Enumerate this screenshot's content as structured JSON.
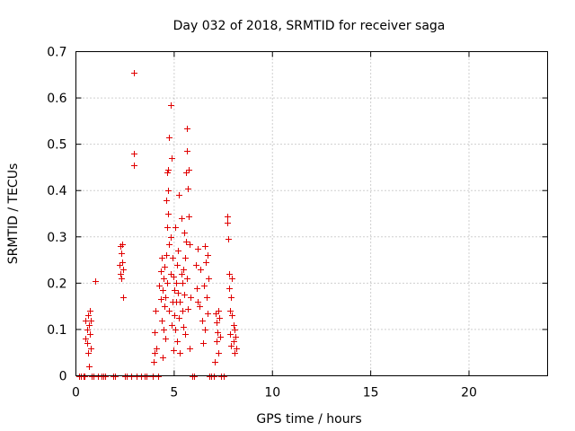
{
  "chart_data": {
    "type": "scatter",
    "title": "Day 032 of 2018, SRMTID for receiver saga",
    "xlabel": "GPS time / hours",
    "ylabel": "SRMTID / TECUs",
    "xlim": [
      0,
      24
    ],
    "ylim": [
      0,
      0.7
    ],
    "xticks": [
      0,
      5,
      10,
      15,
      20
    ],
    "yticks": [
      0,
      0.1,
      0.2,
      0.3,
      0.4,
      0.5,
      0.6,
      0.7
    ],
    "yticklabels": [
      "0",
      "0.1",
      "0.2",
      "0.3",
      "0.4",
      "0.5",
      "0.6",
      "0.7"
    ],
    "grid": true,
    "marker": "+",
    "color": "#e00000",
    "series": [
      {
        "points": [
          [
            0.15,
            0
          ],
          [
            0.25,
            0
          ],
          [
            0.4,
            0
          ],
          [
            0.45,
            0
          ],
          [
            0.5,
            0.12
          ],
          [
            0.5,
            0.08
          ],
          [
            0.55,
            0.1
          ],
          [
            0.55,
            0.07
          ],
          [
            0.6,
            0.13
          ],
          [
            0.6,
            0.05
          ],
          [
            0.65,
            0.11
          ],
          [
            0.65,
            0.02
          ],
          [
            0.7,
            0.14
          ],
          [
            0.7,
            0.09
          ],
          [
            0.75,
            0.12
          ],
          [
            0.75,
            0.06
          ],
          [
            0.8,
            0
          ],
          [
            0.9,
            0
          ],
          [
            1.0,
            0.205
          ],
          [
            1.1,
            0
          ],
          [
            1.3,
            0
          ],
          [
            1.4,
            0
          ],
          [
            1.5,
            0
          ],
          [
            1.9,
            0
          ],
          [
            2.0,
            0
          ],
          [
            2.2,
            0.24
          ],
          [
            2.25,
            0.28
          ],
          [
            2.25,
            0.22
          ],
          [
            2.3,
            0.265
          ],
          [
            2.3,
            0.21
          ],
          [
            2.35,
            0.285
          ],
          [
            2.35,
            0.245
          ],
          [
            2.4,
            0.17
          ],
          [
            2.4,
            0.23
          ],
          [
            2.5,
            0
          ],
          [
            2.6,
            0
          ],
          [
            2.8,
            0
          ],
          [
            2.95,
            0.655
          ],
          [
            2.95,
            0.48
          ],
          [
            2.95,
            0.455
          ],
          [
            3.1,
            0
          ],
          [
            3.3,
            0
          ],
          [
            3.5,
            0
          ],
          [
            3.6,
            0
          ],
          [
            3.9,
            0
          ],
          [
            3.95,
            0.03
          ],
          [
            4.0,
            0.05
          ],
          [
            4.0,
            0.095
          ],
          [
            4.05,
            0.14
          ],
          [
            4.1,
            0.06
          ],
          [
            4.2,
            0
          ],
          [
            4.25,
            0.195
          ],
          [
            4.3,
            0.225
          ],
          [
            4.3,
            0.165
          ],
          [
            4.35,
            0.12
          ],
          [
            4.35,
            0.255
          ],
          [
            4.4,
            0.04
          ],
          [
            4.4,
            0.185
          ],
          [
            4.45,
            0.21
          ],
          [
            4.45,
            0.1
          ],
          [
            4.5,
            0.235
          ],
          [
            4.5,
            0.15
          ],
          [
            4.55,
            0.17
          ],
          [
            4.55,
            0.08
          ],
          [
            4.6,
            0.26
          ],
          [
            4.6,
            0.38
          ],
          [
            4.65,
            0.44
          ],
          [
            4.65,
            0.32
          ],
          [
            4.65,
            0.2
          ],
          [
            4.7,
            0.35
          ],
          [
            4.7,
            0.445
          ],
          [
            4.7,
            0.4
          ],
          [
            4.75,
            0.515
          ],
          [
            4.75,
            0.285
          ],
          [
            4.75,
            0.14
          ],
          [
            4.8,
            0.585
          ],
          [
            4.8,
            0.3
          ],
          [
            4.8,
            0.22
          ],
          [
            4.85,
            0.47
          ],
          [
            4.85,
            0.11
          ],
          [
            4.9,
            0.255
          ],
          [
            4.9,
            0.16
          ],
          [
            4.95,
            0.215
          ],
          [
            4.95,
            0.055
          ],
          [
            5.0,
            0.185
          ],
          [
            5.0,
            0.13
          ],
          [
            5.05,
            0.32
          ],
          [
            5.05,
            0.1
          ],
          [
            5.1,
            0.2
          ],
          [
            5.1,
            0.16
          ],
          [
            5.15,
            0.24
          ],
          [
            5.15,
            0.075
          ],
          [
            5.2,
            0.18
          ],
          [
            5.2,
            0.27
          ],
          [
            5.25,
            0.39
          ],
          [
            5.25,
            0.125
          ],
          [
            5.3,
            0.16
          ],
          [
            5.3,
            0.05
          ],
          [
            5.35,
            0.22
          ],
          [
            5.35,
            0.34
          ],
          [
            5.4,
            0.14
          ],
          [
            5.4,
            0.2
          ],
          [
            5.45,
            0.23
          ],
          [
            5.45,
            0.105
          ],
          [
            5.5,
            0.175
          ],
          [
            5.5,
            0.31
          ],
          [
            5.55,
            0.255
          ],
          [
            5.55,
            0.09
          ],
          [
            5.6,
            0.44
          ],
          [
            5.6,
            0.29
          ],
          [
            5.65,
            0.535
          ],
          [
            5.65,
            0.485
          ],
          [
            5.65,
            0.21
          ],
          [
            5.7,
            0.405
          ],
          [
            5.7,
            0.145
          ],
          [
            5.75,
            0.445
          ],
          [
            5.75,
            0.345
          ],
          [
            5.8,
            0.285
          ],
          [
            5.8,
            0.06
          ],
          [
            5.85,
            0.17
          ],
          [
            5.9,
            0
          ],
          [
            6.0,
            0
          ],
          [
            6.1,
            0.24
          ],
          [
            6.15,
            0.19
          ],
          [
            6.2,
            0.275
          ],
          [
            6.2,
            0.16
          ],
          [
            6.3,
            0.15
          ],
          [
            6.35,
            0.23
          ],
          [
            6.4,
            0.12
          ],
          [
            6.45,
            0.07
          ],
          [
            6.5,
            0.195
          ],
          [
            6.55,
            0.28
          ],
          [
            6.55,
            0.1
          ],
          [
            6.6,
            0.245
          ],
          [
            6.65,
            0.17
          ],
          [
            6.7,
            0.26
          ],
          [
            6.7,
            0.135
          ],
          [
            6.75,
            0.21
          ],
          [
            6.8,
            0
          ],
          [
            6.9,
            0
          ],
          [
            7.0,
            0
          ],
          [
            7.05,
            0.03
          ],
          [
            7.1,
            0.135
          ],
          [
            7.15,
            0.075
          ],
          [
            7.15,
            0.115
          ],
          [
            7.2,
            0.095
          ],
          [
            7.25,
            0.14
          ],
          [
            7.25,
            0.05
          ],
          [
            7.3,
            0.125
          ],
          [
            7.35,
            0.085
          ],
          [
            7.4,
            0
          ],
          [
            7.5,
            0
          ],
          [
            7.7,
            0.345
          ],
          [
            7.7,
            0.33
          ],
          [
            7.75,
            0.295
          ],
          [
            7.8,
            0.22
          ],
          [
            7.8,
            0.19
          ],
          [
            7.85,
            0.14
          ],
          [
            7.85,
            0.09
          ],
          [
            7.9,
            0.17
          ],
          [
            7.9,
            0.065
          ],
          [
            7.95,
            0.21
          ],
          [
            7.95,
            0.13
          ],
          [
            8.0,
            0.11
          ],
          [
            8.0,
            0.075
          ],
          [
            8.05,
            0.1
          ],
          [
            8.05,
            0.05
          ],
          [
            8.1,
            0.085
          ],
          [
            8.15,
            0.06
          ]
        ]
      }
    ]
  }
}
